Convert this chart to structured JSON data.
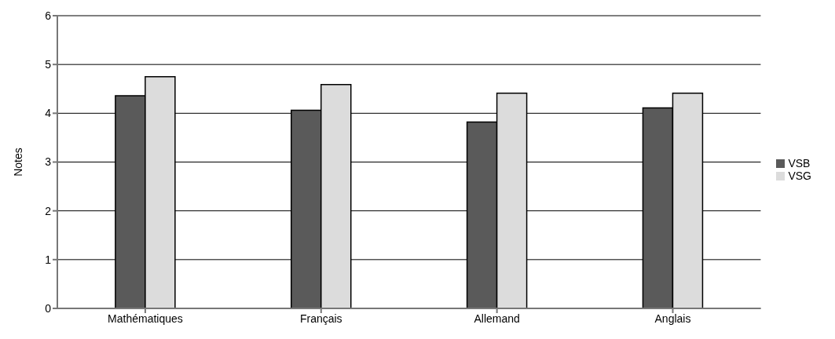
{
  "chart_data": {
    "type": "bar",
    "ylabel": "Notes",
    "categories": [
      "Mathématiques",
      "Français",
      "Allemand",
      "Anglais"
    ],
    "series": [
      {
        "name": "VSB",
        "color": "#5a5a5a",
        "values": [
          4.36,
          4.06,
          3.82,
          4.11
        ]
      },
      {
        "name": "VSG",
        "color": "#dcdcdc",
        "values": [
          4.75,
          4.59,
          4.41,
          4.41
        ]
      }
    ],
    "ylim": [
      0,
      6
    ],
    "yticks": [
      0,
      1,
      2,
      3,
      4,
      5,
      6
    ],
    "grid": "y",
    "legend": "right"
  }
}
